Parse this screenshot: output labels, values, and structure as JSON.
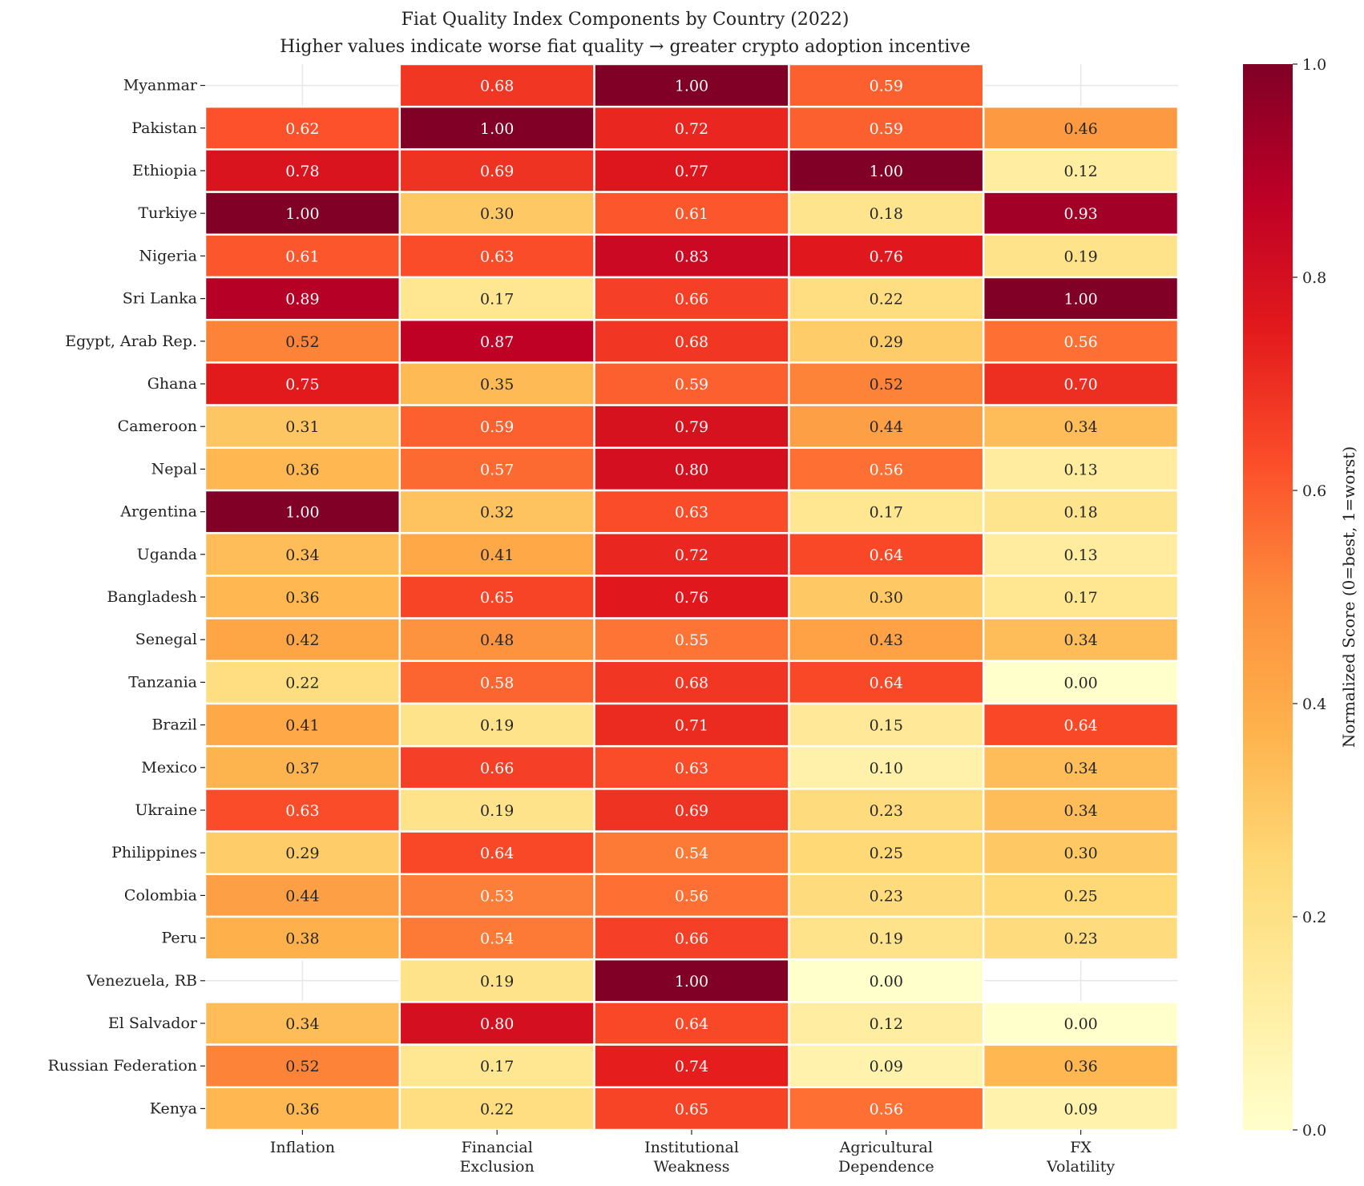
{
  "chart_data": {
    "type": "heatmap",
    "title": "Fiat Quality Index Components by Country (2022)",
    "subtitle": "Higher values indicate worse fiat quality → greater crypto adoption incentive",
    "colormap": "YlOrRd",
    "columns": [
      [
        "Inflation"
      ],
      [
        "Financial",
        "Exclusion"
      ],
      [
        "Institutional",
        "Weakness"
      ],
      [
        "Agricultural",
        "Dependence"
      ],
      [
        "FX",
        "Volatility"
      ]
    ],
    "rows": [
      "Myanmar",
      "Pakistan",
      "Ethiopia",
      "Turkiye",
      "Nigeria",
      "Sri Lanka",
      "Egypt, Arab Rep.",
      "Ghana",
      "Cameroon",
      "Nepal",
      "Argentina",
      "Uganda",
      "Bangladesh",
      "Senegal",
      "Tanzania",
      "Brazil",
      "Mexico",
      "Ukraine",
      "Philippines",
      "Colombia",
      "Peru",
      "Venezuela, RB",
      "El Salvador",
      "Russian Federation",
      "Kenya"
    ],
    "values": [
      [
        null,
        0.68,
        1.0,
        0.59,
        null
      ],
      [
        0.62,
        1.0,
        0.72,
        0.59,
        0.46
      ],
      [
        0.78,
        0.69,
        0.77,
        1.0,
        0.12
      ],
      [
        1.0,
        0.3,
        0.61,
        0.18,
        0.93
      ],
      [
        0.61,
        0.63,
        0.83,
        0.76,
        0.19
      ],
      [
        0.89,
        0.17,
        0.66,
        0.22,
        1.0
      ],
      [
        0.52,
        0.87,
        0.68,
        0.29,
        0.56
      ],
      [
        0.75,
        0.35,
        0.59,
        0.52,
        0.7
      ],
      [
        0.31,
        0.59,
        0.79,
        0.44,
        0.34
      ],
      [
        0.36,
        0.57,
        0.8,
        0.56,
        0.13
      ],
      [
        1.0,
        0.32,
        0.63,
        0.17,
        0.18
      ],
      [
        0.34,
        0.41,
        0.72,
        0.64,
        0.13
      ],
      [
        0.36,
        0.65,
        0.76,
        0.3,
        0.17
      ],
      [
        0.42,
        0.48,
        0.55,
        0.43,
        0.34
      ],
      [
        0.22,
        0.58,
        0.68,
        0.64,
        0.0
      ],
      [
        0.41,
        0.19,
        0.71,
        0.15,
        0.64
      ],
      [
        0.37,
        0.66,
        0.63,
        0.1,
        0.34
      ],
      [
        0.63,
        0.19,
        0.69,
        0.23,
        0.34
      ],
      [
        0.29,
        0.64,
        0.54,
        0.25,
        0.3
      ],
      [
        0.44,
        0.53,
        0.56,
        0.23,
        0.25
      ],
      [
        0.38,
        0.54,
        0.66,
        0.19,
        0.23
      ],
      [
        null,
        0.19,
        1.0,
        0.0,
        null
      ],
      [
        0.34,
        0.8,
        0.64,
        0.12,
        0.0
      ],
      [
        0.52,
        0.17,
        0.74,
        0.09,
        0.36
      ],
      [
        0.36,
        0.22,
        0.65,
        0.56,
        0.09
      ]
    ],
    "colorbar": {
      "label": "Normalized Score (0=best, 1=worst)",
      "range": [
        0,
        1
      ],
      "ticks": [
        "0.0",
        "0.2",
        "0.4",
        "0.6",
        "0.8",
        "1.0"
      ]
    },
    "grid": true
  }
}
